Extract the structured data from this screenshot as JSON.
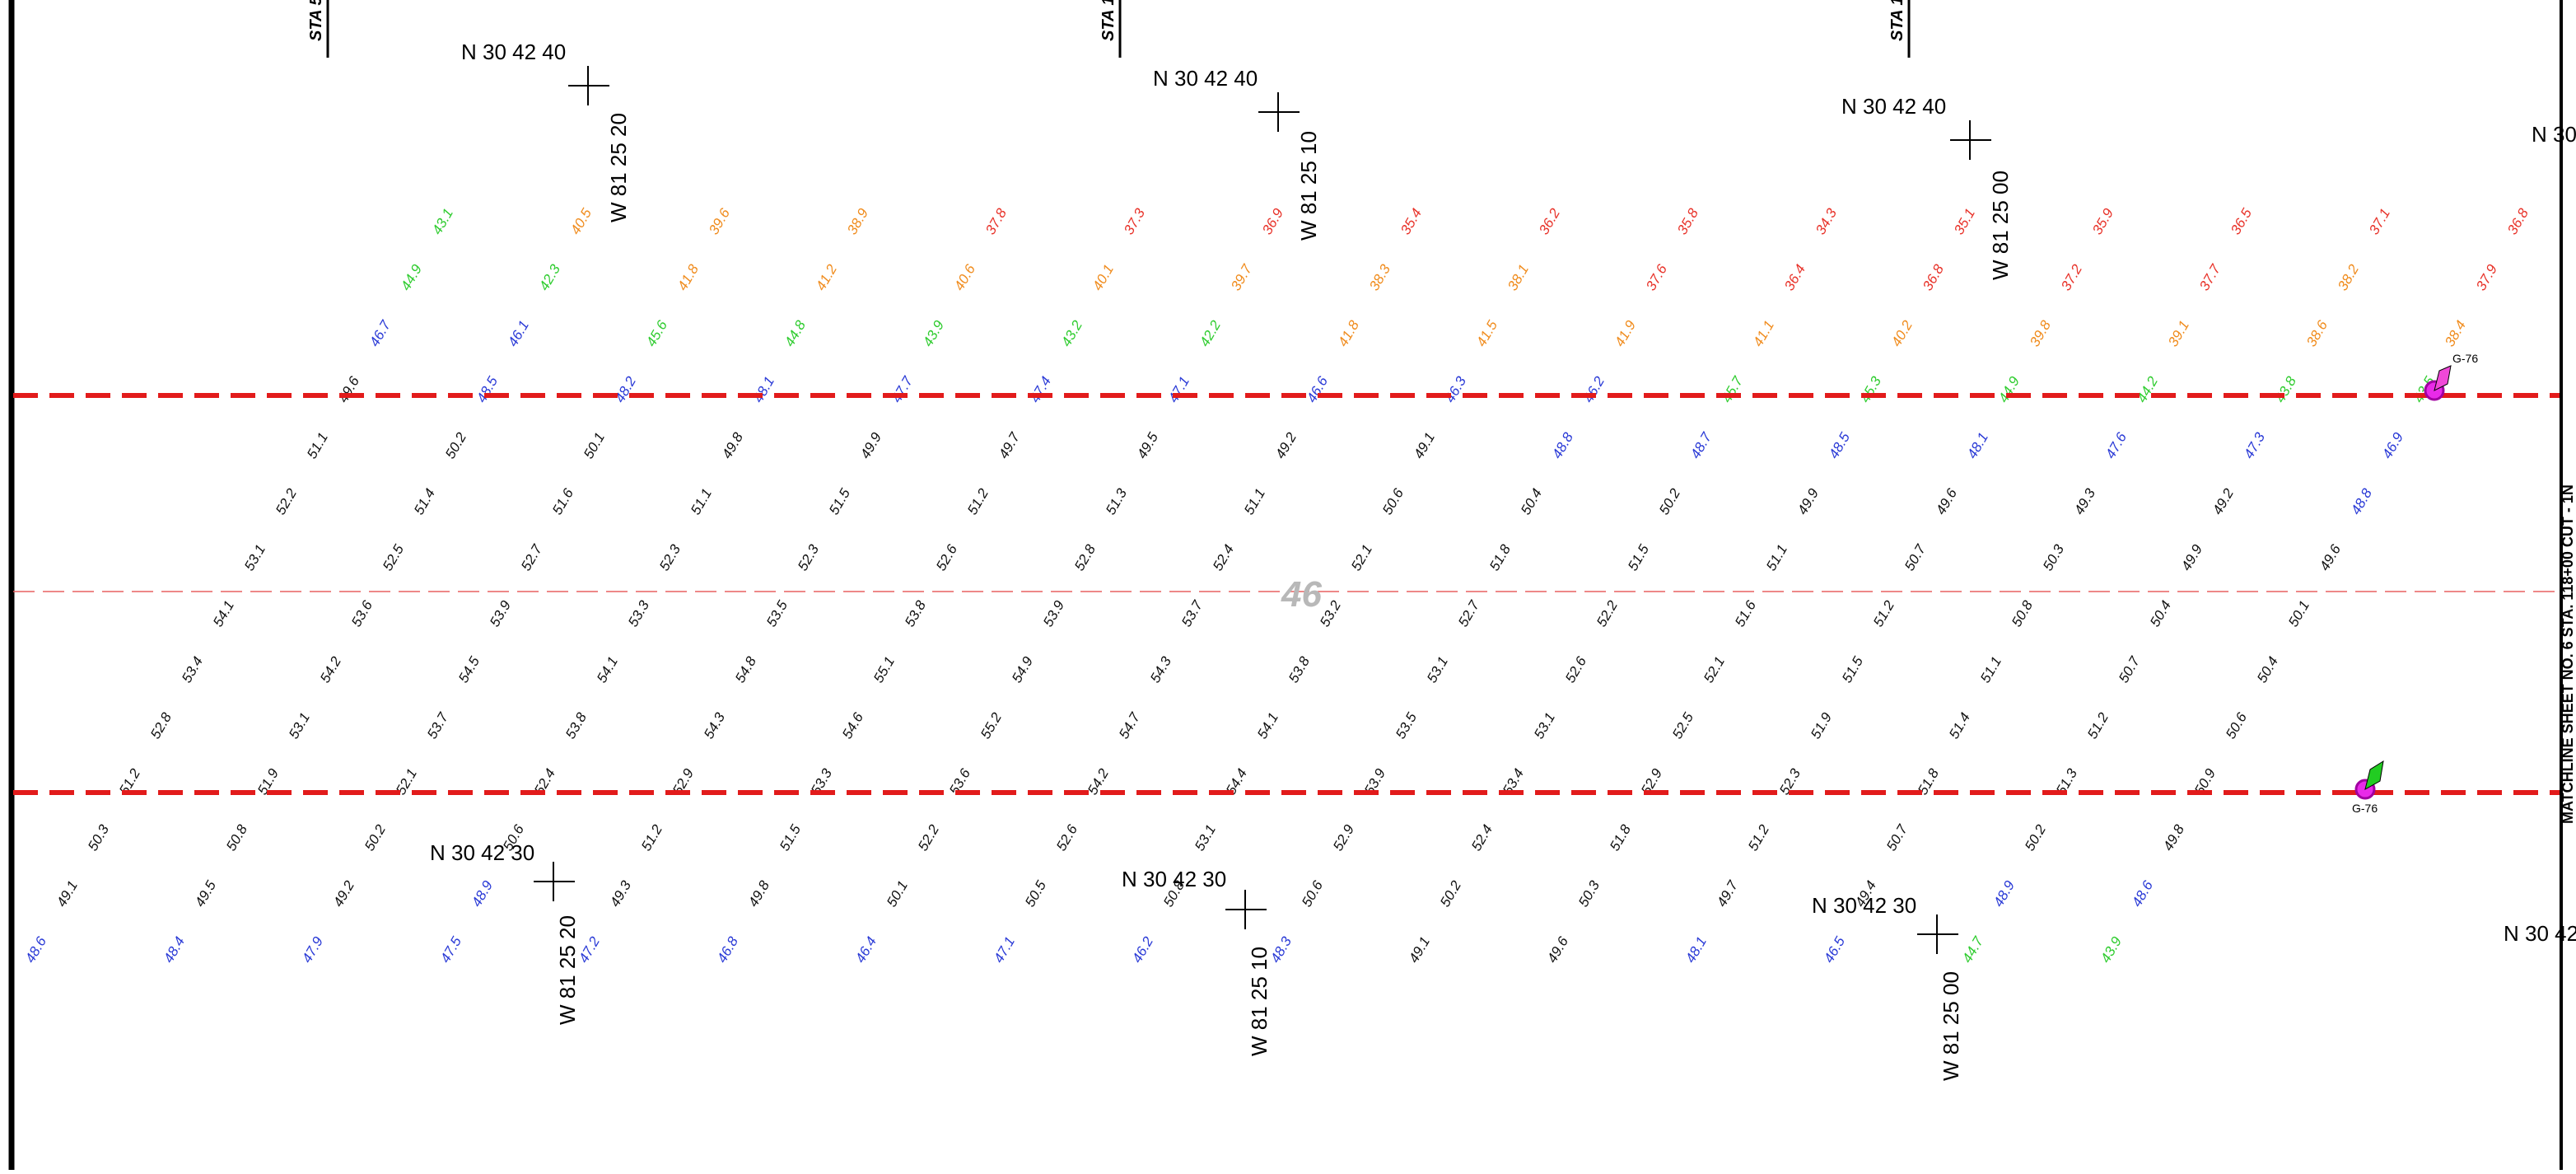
{
  "map": {
    "stations": [
      "STA 5",
      "STA 1",
      "STA 1"
    ],
    "top_coords": [
      {
        "north": "N 30 42 40",
        "west": "W 81 25 20"
      },
      {
        "north": "N 30 42 40",
        "west": "W 81 25 10"
      },
      {
        "north": "N 30 42 40",
        "west": "W 81 25 00"
      }
    ],
    "top_edge": "N 30",
    "bottom_coords": [
      {
        "north": "N 30 42 30",
        "west": "W 81 25 20"
      },
      {
        "north": "N 30 42 30",
        "west": "W 81 25 10"
      },
      {
        "north": "N 30 42 30",
        "west": "W 81 25 00"
      }
    ],
    "bottom_edge": "N 30 42",
    "matchline": "MATCHLINE SHEET NO. 6 STA. 118+00 CUT - 1N",
    "watermark": "46",
    "gauges": [
      "G-76",
      "G-76"
    ],
    "sounding_colors": [
      {
        "below": 38,
        "color": "#e8332a"
      },
      {
        "below": 42,
        "color": "#f08c1e"
      },
      {
        "below": 46,
        "color": "#2fcc2f"
      },
      {
        "below": 49,
        "color": "#2a3ad6"
      },
      {
        "below": 100,
        "color": "#111111"
      }
    ],
    "soundings": [
      [
        48.6,
        49.1,
        50.3,
        51.2,
        52.8,
        53.4,
        54.1,
        53.1,
        52.2,
        51.1,
        49.6,
        46.7,
        44.9,
        43.1
      ],
      [
        48.4,
        49.5,
        50.8,
        51.9,
        53.1,
        54.2,
        53.6,
        52.5,
        51.4,
        50.2,
        48.5,
        46.1,
        42.3,
        40.5
      ],
      [
        47.9,
        49.2,
        50.2,
        52.1,
        53.7,
        54.5,
        53.9,
        52.7,
        51.6,
        50.1,
        48.2,
        45.6,
        41.8,
        39.6
      ],
      [
        47.5,
        48.9,
        50.6,
        52.4,
        53.8,
        54.1,
        53.3,
        52.3,
        51.1,
        49.8,
        48.1,
        44.8,
        41.2,
        38.9
      ],
      [
        47.2,
        49.3,
        51.2,
        52.9,
        54.3,
        54.8,
        53.5,
        52.3,
        51.5,
        49.9,
        47.7,
        43.9,
        40.6,
        37.8
      ],
      [
        46.8,
        49.8,
        51.5,
        53.3,
        54.6,
        55.1,
        53.8,
        52.6,
        51.2,
        49.7,
        47.4,
        43.2,
        40.1,
        37.3
      ],
      [
        46.4,
        50.1,
        52.2,
        53.6,
        55.2,
        54.9,
        53.9,
        52.8,
        51.3,
        49.5,
        47.1,
        42.2,
        39.7,
        36.9
      ],
      [
        47.1,
        50.5,
        52.6,
        54.2,
        54.7,
        54.3,
        53.7,
        52.4,
        51.1,
        49.2,
        46.6,
        41.8,
        38.3,
        35.4
      ],
      [
        46.2,
        50.8,
        53.1,
        54.4,
        54.1,
        53.8,
        53.2,
        52.1,
        50.6,
        49.1,
        46.3,
        41.5,
        38.1,
        36.2
      ],
      [
        48.3,
        50.6,
        52.9,
        53.9,
        53.5,
        53.1,
        52.7,
        51.8,
        50.4,
        48.8,
        46.2,
        41.9,
        37.6,
        35.8
      ],
      [
        49.1,
        50.2,
        52.4,
        53.4,
        53.1,
        52.6,
        52.2,
        51.5,
        50.2,
        48.7,
        45.7,
        41.1,
        36.4,
        34.3
      ],
      [
        49.6,
        50.3,
        51.8,
        52.9,
        52.5,
        52.1,
        51.6,
        51.1,
        49.9,
        48.5,
        45.3,
        40.2,
        36.8,
        35.1
      ],
      [
        48.1,
        49.7,
        51.2,
        52.3,
        51.9,
        51.5,
        51.2,
        50.7,
        49.6,
        48.1,
        44.9,
        39.8,
        37.2,
        35.9
      ],
      [
        46.5,
        49.4,
        50.7,
        51.8,
        51.4,
        51.1,
        50.8,
        50.3,
        49.3,
        47.6,
        44.2,
        39.1,
        37.7,
        36.5
      ],
      [
        44.7,
        48.9,
        50.2,
        51.3,
        51.2,
        50.7,
        50.4,
        49.9,
        49.2,
        47.3,
        43.8,
        38.6,
        38.2,
        37.1
      ],
      [
        43.9,
        48.6,
        49.8,
        50.9,
        50.6,
        50.4,
        50.1,
        49.6,
        48.8,
        46.9,
        43.5,
        38.4,
        37.9,
        36.8
      ]
    ]
  }
}
